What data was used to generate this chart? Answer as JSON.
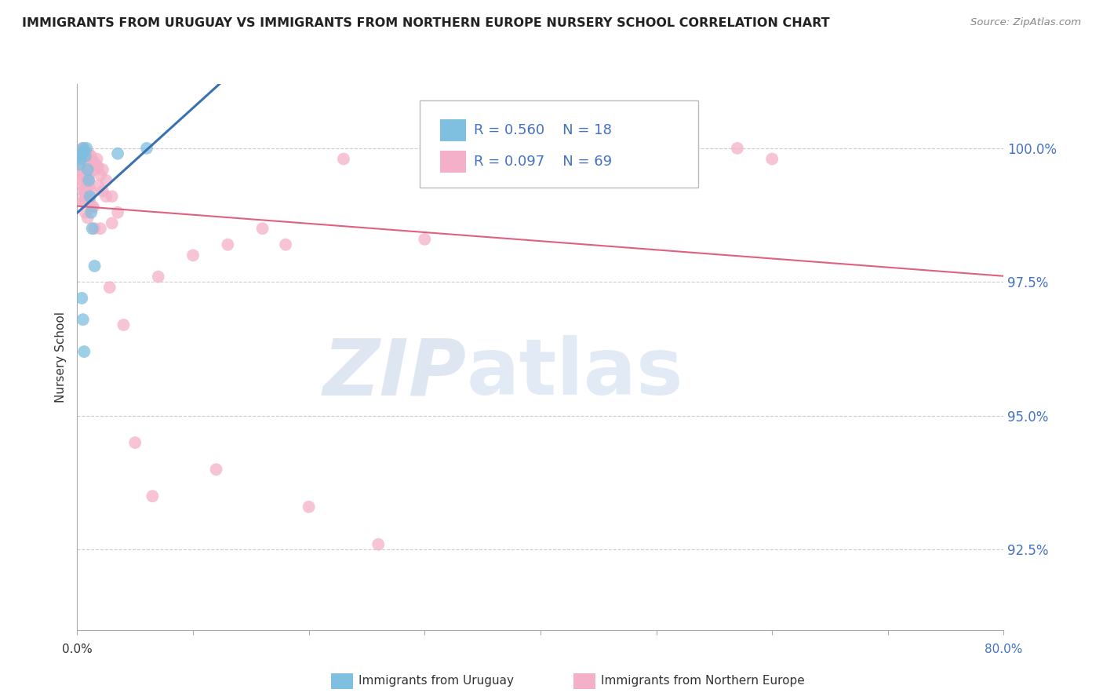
{
  "title": "IMMIGRANTS FROM URUGUAY VS IMMIGRANTS FROM NORTHERN EUROPE NURSERY SCHOOL CORRELATION CHART",
  "source": "Source: ZipAtlas.com",
  "ylabel": "Nursery School",
  "yticks": [
    92.5,
    95.0,
    97.5,
    100.0
  ],
  "ytick_labels": [
    "92.5%",
    "95.0%",
    "97.5%",
    "100.0%"
  ],
  "xlim": [
    0.0,
    80.0
  ],
  "ylim": [
    91.0,
    101.2
  ],
  "xtick_positions": [
    0,
    10,
    20,
    30,
    40,
    50,
    60,
    70,
    80
  ],
  "legend_r1": "R = 0.560",
  "legend_n1": "N = 18",
  "legend_r2": "R = 0.097",
  "legend_n2": "N = 69",
  "color_blue": "#7fbfdf",
  "color_pink": "#f4b0c8",
  "line_color_blue": "#3a72b0",
  "line_color_pink": "#e06080",
  "blue_points_x": [
    0.2,
    0.3,
    0.4,
    0.5,
    0.6,
    0.7,
    0.8,
    0.9,
    1.0,
    1.1,
    1.2,
    1.3,
    1.5,
    0.4,
    0.5,
    0.6,
    3.5,
    6.0
  ],
  "blue_points_y": [
    99.7,
    99.8,
    99.9,
    100.0,
    99.95,
    99.85,
    100.0,
    99.6,
    99.4,
    99.1,
    98.8,
    98.5,
    97.8,
    97.2,
    96.8,
    96.2,
    99.9,
    100.0
  ],
  "pink_points_x": [
    0.2,
    0.3,
    0.4,
    0.5,
    0.6,
    0.7,
    0.8,
    0.9,
    1.0,
    1.1,
    1.2,
    1.3,
    1.4,
    1.5,
    1.6,
    1.7,
    1.8,
    2.0,
    2.2,
    2.5,
    3.0,
    3.5,
    0.3,
    0.4,
    0.5,
    0.6,
    0.7,
    0.8,
    0.9,
    1.0,
    1.1,
    1.2,
    1.3,
    0.4,
    0.5,
    0.6,
    0.7,
    0.8,
    7.0,
    10.0,
    13.0,
    16.0,
    0.8,
    1.0,
    1.5,
    2.5,
    18.0,
    0.5,
    0.9,
    1.4,
    6.5,
    30.0,
    57.0,
    23.0,
    2.8,
    2.0,
    3.0,
    4.0,
    5.0,
    12.0,
    20.0,
    26.0,
    0.6,
    1.0,
    1.8,
    2.2,
    60.0,
    48.0,
    35.0
  ],
  "pink_points_y": [
    99.9,
    99.85,
    99.95,
    100.0,
    99.8,
    99.9,
    99.85,
    99.75,
    99.9,
    99.8,
    99.85,
    99.7,
    99.75,
    99.6,
    99.7,
    99.8,
    99.65,
    99.5,
    99.6,
    99.4,
    99.1,
    98.8,
    99.5,
    99.6,
    99.3,
    99.5,
    99.2,
    99.4,
    99.1,
    99.3,
    99.0,
    99.2,
    98.9,
    99.4,
    99.2,
    99.0,
    98.8,
    99.1,
    97.6,
    98.0,
    98.2,
    98.5,
    99.3,
    99.5,
    98.5,
    99.1,
    98.2,
    99.0,
    98.7,
    98.9,
    93.5,
    98.3,
    100.0,
    99.8,
    97.4,
    98.5,
    98.6,
    96.7,
    94.5,
    94.0,
    93.3,
    92.6,
    99.1,
    99.4,
    99.3,
    99.2,
    99.8,
    99.9,
    100.0
  ]
}
